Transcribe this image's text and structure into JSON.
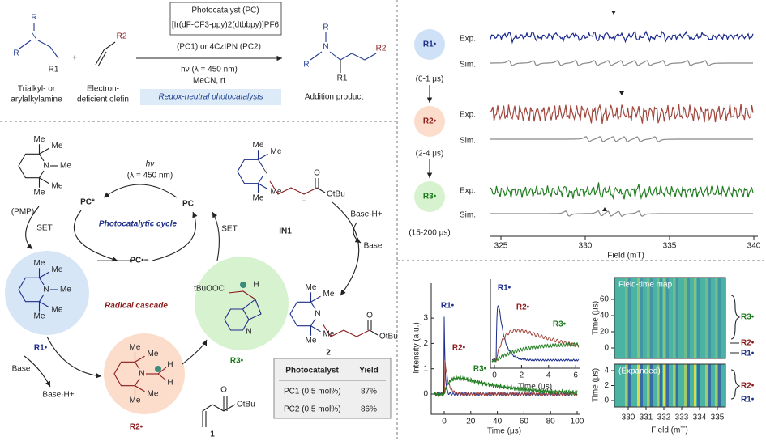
{
  "reaction": {
    "amine": {
      "atoms": [
        "R",
        "N",
        "R",
        "R1"
      ],
      "caption": [
        "Trialkyl- or",
        "arylalkylamine"
      ]
    },
    "plus": "+",
    "olefin": {
      "atoms": [
        "R2"
      ],
      "caption": [
        "Electron-",
        "deficient olefin"
      ]
    },
    "catalyst": [
      "Photocatalyst (PC)",
      "[Ir(dF-CF3-ppy)2(dtbbpy)]PF6",
      "(PC1) or 4CzIPN (PC2)"
    ],
    "conditions": [
      "hν (λ = 450 nm)",
      "MeCN, rt"
    ],
    "highlight": "Redox-neutral photocatalysis",
    "product": {
      "atoms": [
        "R",
        "N",
        "R",
        "R1",
        "R2"
      ],
      "caption": "Addition product"
    }
  },
  "mechanism": {
    "light": [
      "hν",
      "(λ = 450 nm)"
    ],
    "pc_star": "PC*",
    "pc": "PC",
    "pc_reduced": "PC•−",
    "cycle_label": "Photocatalytic cycle",
    "cascade_label": "Radical cascade",
    "set": [
      "SET",
      "SET"
    ],
    "pmp": {
      "atoms": [
        "Me",
        "Me",
        "N",
        "Me",
        "Me",
        "Me"
      ],
      "caption": "(PMP)"
    },
    "r1": {
      "atoms": [
        "Me",
        "Me",
        "N",
        "Me",
        "Me",
        "Me"
      ],
      "label": "R1•"
    },
    "r2": {
      "atoms": [
        "Me",
        "Me",
        "N",
        "H",
        "H",
        "Me",
        "Me"
      ],
      "label": "R2•"
    },
    "r3": {
      "atoms": [
        "tBuOOC",
        "H",
        "N"
      ],
      "label": "R3•"
    },
    "in1": {
      "atoms": [
        "Me",
        "Me",
        "N",
        "Me",
        "Me",
        "O",
        "OtBu",
        "−"
      ],
      "label": "IN1"
    },
    "product": {
      "atoms": [
        "Me",
        "Me",
        "N",
        "Me",
        "Me",
        "O",
        "OtBu"
      ],
      "label": "2"
    },
    "olefin": {
      "atoms": [
        "O",
        "OtBu"
      ],
      "label": "1"
    },
    "base_steps": [
      [
        "Base·H+",
        "Base"
      ],
      [
        "Base",
        "Base·H+"
      ]
    ],
    "table": {
      "header": [
        "Photocatalyst",
        "Yield"
      ],
      "rows": [
        [
          "PC1 (0.5 mol%)",
          "87%"
        ],
        [
          "PC2 (0.5 mol%)",
          "86%"
        ]
      ]
    }
  },
  "epr": {
    "species": [
      {
        "label": "R1•",
        "window": "(0-1 μs)",
        "exp": "Exp.",
        "sim": "Sim."
      },
      {
        "label": "R2•",
        "window": "(2-4 μs)",
        "exp": "Exp.",
        "sim": "Sim."
      },
      {
        "label": "R3•",
        "window": "(15-200 μs)",
        "exp": "Exp.",
        "sim": "Sim."
      }
    ],
    "xticks": [
      325,
      330,
      335,
      340
    ],
    "xlabel": "Field (mT)"
  },
  "kinetics": {
    "ylabel": "Intensity (a.u.)",
    "yticks": [
      0,
      1,
      2,
      3
    ],
    "xticks": [
      0,
      20,
      40,
      60,
      80,
      100
    ],
    "xlabel": "Time (μs)",
    "labels": [
      "R1•",
      "R2•",
      "R3•"
    ],
    "inset": {
      "xticks": [
        0,
        2,
        4,
        6
      ],
      "xlabel": "Time (μs)",
      "labels": [
        "R1•",
        "R2•",
        "R3•"
      ]
    }
  },
  "map": {
    "top": {
      "title": "Field-time map",
      "ylabel": "Time (μs)",
      "yticks": [
        0,
        20,
        40,
        60
      ],
      "labels": [
        "R3•",
        "R2•",
        "R1•"
      ]
    },
    "bottom": {
      "title": "(Expanded)",
      "ylabel": "Time (μs)",
      "yticks": [
        0,
        2,
        4
      ],
      "labels": [
        "R2•",
        "R1•"
      ]
    },
    "xticks": [
      330,
      331,
      332,
      333,
      334,
      335
    ],
    "xlabel": "Field (mT)"
  }
}
